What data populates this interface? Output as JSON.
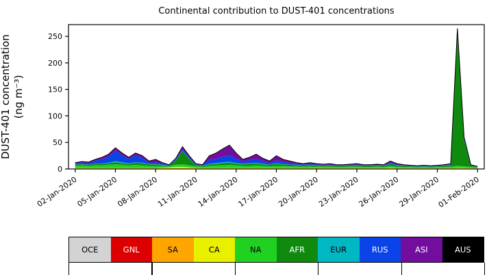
{
  "figure": {
    "title": "Continental contribution to DUST-401 concentrations"
  },
  "chart_data": {
    "type": "area",
    "stacked": true,
    "title": "Continental contribution to DUST-401 concentrations",
    "xlabel": "",
    "ylabel": "DUST-401 concentration (ng m⁻³)",
    "ylabel_lines": [
      "DUST-401 concentration",
      "(ng m⁻³)"
    ],
    "legend_position": "bottom",
    "grid": false,
    "xlim": [
      -0.5,
      30.5
    ],
    "ylim": [
      0,
      272
    ],
    "yticks": [
      0,
      50,
      100,
      150,
      200,
      250
    ],
    "xticks": {
      "positions": [
        0,
        3,
        6,
        9,
        12,
        15,
        18,
        21,
        24,
        27,
        30
      ],
      "labels": [
        "02-Jan-2020",
        "05-Jan-2020",
        "08-Jan-2020",
        "11-Jan-2020",
        "14-Jan-2020",
        "17-Jan-2020",
        "20-Jan-2020",
        "23-Jan-2020",
        "26-Jan-2020",
        "29-Jan-2020",
        "01-Feb-2020"
      ]
    },
    "x_unit": "days since 02-Jan-2020",
    "x": [
      0,
      0.5,
      1,
      1.5,
      2,
      2.5,
      3,
      3.5,
      4,
      4.5,
      5,
      5.5,
      6,
      6.5,
      7,
      7.5,
      8,
      8.5,
      9,
      9.5,
      10,
      10.5,
      11,
      11.5,
      12,
      12.5,
      13,
      13.5,
      14,
      14.5,
      15,
      15.5,
      16,
      16.5,
      17,
      17.5,
      18,
      18.5,
      19,
      19.5,
      20,
      20.5,
      21,
      21.5,
      22,
      22.5,
      23,
      23.5,
      24,
      24.5,
      25,
      25.5,
      26,
      26.5,
      27,
      27.5,
      28,
      28.5,
      29,
      29.5,
      30
    ],
    "series": [
      {
        "name": "OCE",
        "color": "#d3d3d3",
        "label_color": "#000000",
        "values": 0.3
      },
      {
        "name": "GNL",
        "color": "#dd0000",
        "label_color": "#ffffff",
        "values": 0.2
      },
      {
        "name": "SA",
        "color": "#ffa500",
        "label_color": "#000000",
        "values": 0.5
      },
      {
        "name": "CA",
        "color": "#e8f000",
        "label_color": "#000000",
        "values": [
          0.8,
          0.8,
          0.8,
          0.8,
          0.8,
          0.8,
          0.8,
          0.8,
          0.8,
          0.8,
          0.8,
          0.8,
          0.8,
          1.5,
          2,
          3,
          3,
          2,
          1,
          0.8,
          0.8,
          0.8,
          0.8,
          0.8,
          0.8,
          0.8,
          0.8,
          0.8,
          0.8,
          0.8,
          0.8,
          0.8,
          0.8,
          0.8,
          0.8,
          0.8,
          0.8,
          0.8,
          0.8,
          0.7,
          0.7,
          0.8,
          0.8,
          0.7,
          0.7,
          0.8,
          0.7,
          1.5,
          0.8,
          0.7,
          0.6,
          0.5,
          0.6,
          0.5,
          0.6,
          0.7,
          0.8,
          1,
          1,
          0.8,
          0.5
        ]
      },
      {
        "name": "NA",
        "color": "#21d121",
        "label_color": "#000000",
        "values": [
          4,
          5,
          4,
          5,
          5,
          6,
          7,
          6,
          5,
          6,
          5,
          4,
          4,
          3,
          2,
          4,
          5,
          4,
          3,
          2.5,
          4,
          5,
          5,
          6,
          5,
          4,
          4,
          5,
          4,
          3,
          4,
          4,
          3,
          3,
          2.5,
          3,
          2.5,
          2.5,
          2.5,
          2.2,
          2.2,
          2.5,
          2.5,
          2.2,
          2.2,
          2.5,
          2.2,
          3,
          2.5,
          2.2,
          2,
          1.7,
          2,
          1.7,
          2,
          2.2,
          2.5,
          4,
          3,
          2,
          1.5
        ]
      },
      {
        "name": "AFR",
        "color": "#0f8a0f",
        "label_color": "#ffffff",
        "values": [
          2,
          2,
          2,
          3,
          3,
          3,
          4,
          3,
          3,
          4,
          4,
          3,
          3,
          2,
          1,
          8,
          25,
          12,
          2,
          1.5,
          3,
          3,
          4,
          4,
          3,
          3,
          4,
          4,
          3,
          3,
          4,
          3,
          3,
          2.5,
          2,
          2.5,
          2,
          1.8,
          2,
          1.6,
          1.6,
          1.8,
          2,
          1.6,
          1.6,
          1.8,
          1.6,
          4,
          2,
          1.6,
          1.4,
          1.2,
          1.4,
          1.2,
          1.4,
          1.6,
          3,
          252,
          50,
          2.1,
          1
        ]
      },
      {
        "name": "EUR",
        "color": "#00b7c4",
        "label_color": "#000000",
        "values": [
          0.5,
          0.5,
          0.5,
          0.5,
          0.5,
          1,
          2,
          2,
          1,
          1,
          1,
          0.5,
          0.5,
          0.5,
          0.3,
          0.5,
          0.5,
          0.5,
          0.3,
          0.3,
          1,
          1.5,
          2,
          2,
          1.5,
          1,
          1,
          1,
          1,
          0.5,
          1,
          0.5,
          0.5,
          0.5,
          0.4,
          0.5,
          0.4,
          0.4,
          0.4,
          0.3,
          0.3,
          0.4,
          0.4,
          0.3,
          0.3,
          0.4,
          0.3,
          0.5,
          0.4,
          0.3,
          0.3,
          0.2,
          0.3,
          0.2,
          0.3,
          0.3,
          0.4,
          0.5,
          0.5,
          0.3,
          0.2
        ]
      },
      {
        "name": "RUS",
        "color": "#0a43e8",
        "label_color": "#ffffff",
        "values": [
          2,
          3,
          3,
          5,
          8,
          12,
          20,
          13,
          8,
          13,
          9,
          3,
          3,
          2,
          1,
          2,
          3,
          3,
          1.5,
          1,
          7,
          8,
          10,
          12,
          8,
          4,
          6,
          7,
          5,
          3,
          5,
          4,
          3,
          2,
          1.7,
          2,
          1.7,
          1.4,
          1.7,
          1.2,
          1.2,
          1.4,
          1.7,
          1.2,
          1.2,
          1.4,
          1.2,
          2.5,
          1.7,
          1.2,
          1,
          0.8,
          1,
          0.8,
          1,
          1.2,
          1.2,
          3,
          2.5,
          1,
          0.5
        ]
      },
      {
        "name": "ASI",
        "color": "#730d9e",
        "label_color": "#ffffff",
        "values": [
          1.6,
          1.6,
          1.6,
          2.6,
          3.6,
          4.1,
          5.1,
          4.1,
          3.1,
          4.1,
          4.1,
          2.6,
          5.6,
          1.9,
          0.6,
          1.4,
          4.4,
          2.4,
          1.1,
          0.8,
          8.1,
          10.6,
          15.1,
          19.1,
          10.6,
          4.1,
          5.1,
          9.1,
          5.1,
          3.6,
          9.1,
          4.6,
          3.6,
          2.1,
          1.5,
          2.1,
          1.5,
          1,
          1.5,
          0.9,
          0.9,
          1,
          1.5,
          0.9,
          0.9,
          1,
          0.9,
          2.4,
          1.5,
          0.9,
          0.6,
          0.5,
          0.6,
          0.5,
          0.6,
          0.9,
          1,
          3.4,
          1.9,
          0.7,
          0.2
        ]
      },
      {
        "name": "AUS",
        "color": "#000000",
        "label_color": "#ffffff",
        "values": 0.1
      }
    ]
  }
}
